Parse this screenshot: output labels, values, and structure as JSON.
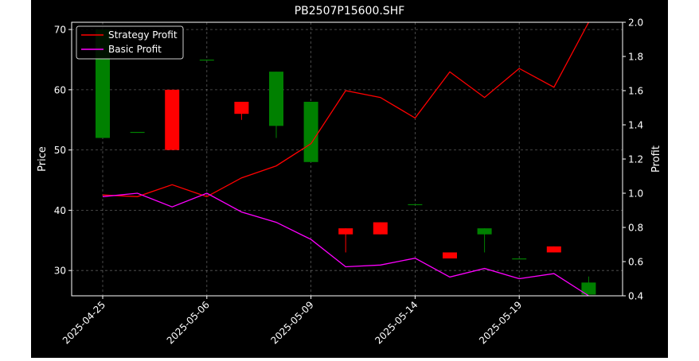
{
  "chart_data": {
    "type": "candlestick+line",
    "title": "PB2507P15600.SHF",
    "xlabel": "",
    "ylabel_left": "Price",
    "ylabel_right": "Profit",
    "ylim_left": [
      25.8,
      71.2
    ],
    "ylim_right": [
      0.4,
      2.0
    ],
    "yticks_left": [
      30,
      40,
      50,
      60,
      70
    ],
    "yticks_right": [
      0.4,
      0.6,
      0.8,
      1.0,
      1.2,
      1.4,
      1.6,
      1.8,
      2.0
    ],
    "xtick_labels": [
      "2025-04-25",
      "2025-05-06",
      "2025-05-09",
      "2025-05-14",
      "2025-05-19"
    ],
    "xtick_indices": [
      0,
      3,
      6,
      9,
      12
    ],
    "grid": true,
    "legend_position": "top-left",
    "colors": {
      "up": "#008000",
      "down": "#ff0000",
      "strategy": "#ff0000",
      "basic": "#ff00ff",
      "background": "#000000",
      "foreground": "#ffffff"
    },
    "candles": [
      {
        "open": 52,
        "close": 70,
        "high": 70,
        "low": 52
      },
      {
        "open": 53,
        "close": 53,
        "high": 53,
        "low": 53
      },
      {
        "open": 60,
        "close": 50,
        "high": 60,
        "low": 50
      },
      {
        "open": 65,
        "close": 65,
        "high": 65,
        "low": 65
      },
      {
        "open": 58,
        "close": 56,
        "high": 58,
        "low": 55
      },
      {
        "open": 54,
        "close": 63,
        "high": 63,
        "low": 52
      },
      {
        "open": 48,
        "close": 58,
        "high": 58,
        "low": 48
      },
      {
        "open": 37,
        "close": 36,
        "high": 37,
        "low": 33
      },
      {
        "open": 38,
        "close": 36,
        "high": 38,
        "low": 36
      },
      {
        "open": 41,
        "close": 41,
        "high": 41,
        "low": 41
      },
      {
        "open": 33,
        "close": 32,
        "high": 33,
        "low": 32
      },
      {
        "open": 36,
        "close": 37,
        "high": 37,
        "low": 33
      },
      {
        "open": 32,
        "close": 32,
        "high": 32,
        "low": 32
      },
      {
        "open": 34,
        "close": 33,
        "high": 34,
        "low": 33
      },
      {
        "open": 26,
        "close": 28,
        "high": 29,
        "low": 26
      }
    ],
    "series": [
      {
        "name": "Strategy Profit",
        "values": [
          0.99,
          0.98,
          1.05,
          0.98,
          1.09,
          1.16,
          1.29,
          1.6,
          1.56,
          1.44,
          1.71,
          1.56,
          1.73,
          1.62,
          2.0
        ]
      },
      {
        "name": "Basic Profit",
        "values": [
          0.98,
          1.0,
          0.92,
          1.0,
          0.89,
          0.83,
          0.73,
          0.57,
          0.58,
          0.62,
          0.51,
          0.56,
          0.5,
          0.53,
          0.4
        ]
      }
    ]
  }
}
